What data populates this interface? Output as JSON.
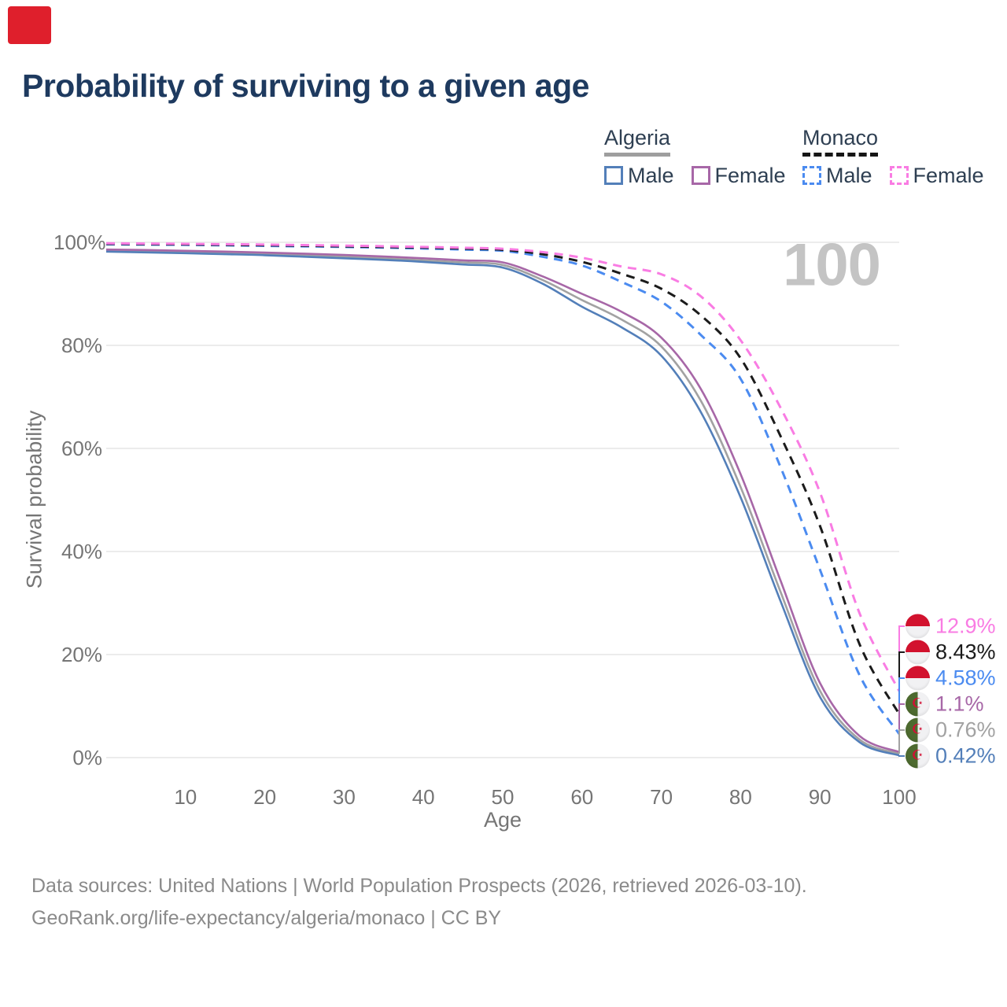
{
  "marker": {
    "color": "#df1f2c"
  },
  "title": "Probability of surviving to a given age",
  "watermark": "100",
  "legend": {
    "groups": [
      {
        "country": "Algeria",
        "line_style": "solid",
        "line_sample_color": "#9e9e9e",
        "items": [
          {
            "label": "Male",
            "color": "#537fb9",
            "dashed": false
          },
          {
            "label": "Female",
            "color": "#a767a7",
            "dashed": false
          }
        ]
      },
      {
        "country": "Monaco",
        "line_style": "dashed",
        "line_sample_color": "#161616",
        "items": [
          {
            "label": "Male",
            "color": "#4b8bf0",
            "dashed": true
          },
          {
            "label": "Female",
            "color": "#f97ce3",
            "dashed": true
          }
        ]
      }
    ]
  },
  "chart_data": {
    "type": "line",
    "title": "Probability of surviving to a given age",
    "xlabel": "Age",
    "ylabel": "Survival probability",
    "xlim": [
      0,
      100
    ],
    "ylim": [
      0,
      100
    ],
    "grid": "horizontal",
    "x_ticks": [
      10,
      20,
      30,
      40,
      50,
      60,
      70,
      80,
      90,
      100
    ],
    "y_ticks": [
      0,
      20,
      40,
      60,
      80,
      100
    ],
    "y_tick_suffix": "%",
    "legend_position": "top-right",
    "x": [
      0,
      5,
      10,
      15,
      20,
      25,
      30,
      35,
      40,
      45,
      50,
      55,
      60,
      65,
      70,
      75,
      80,
      85,
      90,
      95,
      100
    ],
    "series": [
      {
        "id": "algeria",
        "name": "Algeria",
        "color": "#a2a2a2",
        "dashed": false,
        "end_value": 0.76,
        "values": [
          98.4,
          98.3,
          98.1,
          97.95,
          97.8,
          97.55,
          97.25,
          96.9,
          96.5,
          96.1,
          95.6,
          92.7,
          88.8,
          85.0,
          79.8,
          69.2,
          52.5,
          32.3,
          13.0,
          3.5,
          0.76
        ]
      },
      {
        "id": "algeria_male",
        "name": "Algeria Male",
        "color": "#537fb9",
        "dashed": false,
        "end_value": 0.42,
        "values": [
          98.2,
          98.05,
          97.9,
          97.7,
          97.5,
          97.2,
          96.9,
          96.6,
          96.2,
          95.7,
          95.1,
          92.0,
          87.5,
          83.5,
          78.0,
          67.0,
          50.5,
          30.5,
          11.8,
          3.0,
          0.42
        ]
      },
      {
        "id": "algeria_female",
        "name": "Algeria Female",
        "color": "#a767a7",
        "dashed": false,
        "end_value": 1.1,
        "values": [
          98.6,
          98.5,
          98.35,
          98.2,
          98.0,
          97.8,
          97.55,
          97.25,
          96.9,
          96.5,
          96.1,
          93.4,
          90.0,
          86.5,
          81.5,
          71.5,
          55.0,
          34.5,
          14.5,
          4.2,
          1.1
        ]
      },
      {
        "id": "monaco_male",
        "name": "Monaco Male",
        "color": "#4b8bf0",
        "dashed": true,
        "end_value": 4.58,
        "values": [
          99.6,
          99.55,
          99.5,
          99.42,
          99.32,
          99.22,
          99.1,
          98.97,
          98.8,
          98.6,
          98.35,
          97.2,
          95.5,
          92.3,
          88.5,
          82.0,
          73.5,
          56.5,
          36.5,
          16.0,
          4.58
        ]
      },
      {
        "id": "monaco",
        "name": "Monaco",
        "color": "#1b1b1b",
        "dashed": true,
        "end_value": 8.43,
        "values": [
          99.7,
          99.66,
          99.6,
          99.52,
          99.44,
          99.34,
          99.22,
          99.1,
          98.97,
          98.8,
          98.55,
          97.7,
          96.2,
          93.9,
          91.0,
          85.8,
          77.5,
          62.5,
          45.0,
          22.0,
          8.43
        ]
      },
      {
        "id": "monaco_female",
        "name": "Monaco Female",
        "color": "#f97ce3",
        "dashed": true,
        "end_value": 12.9,
        "values": [
          99.8,
          99.76,
          99.7,
          99.64,
          99.56,
          99.46,
          99.36,
          99.24,
          99.1,
          98.95,
          98.75,
          98.1,
          97.0,
          95.3,
          93.8,
          89.5,
          81.0,
          68.0,
          51.5,
          28.0,
          12.9
        ]
      }
    ],
    "end_labels": [
      {
        "text": "12.9%",
        "series": "monaco_female",
        "flag": "monaco"
      },
      {
        "text": "8.43%",
        "series": "monaco",
        "flag": "monaco"
      },
      {
        "text": "4.58%",
        "series": "monaco_male",
        "flag": "monaco"
      },
      {
        "text": "1.1%",
        "series": "algeria_female",
        "flag": "algeria"
      },
      {
        "text": "0.76%",
        "series": "algeria",
        "flag": "algeria"
      },
      {
        "text": "0.42%",
        "series": "algeria_male",
        "flag": "algeria"
      }
    ]
  },
  "footer": {
    "line1": "Data sources: United Nations | World Population Prospects (2026, retrieved 2026-03-10).",
    "line2": "GeoRank.org/life-expectancy/algeria/monaco | CC BY"
  }
}
